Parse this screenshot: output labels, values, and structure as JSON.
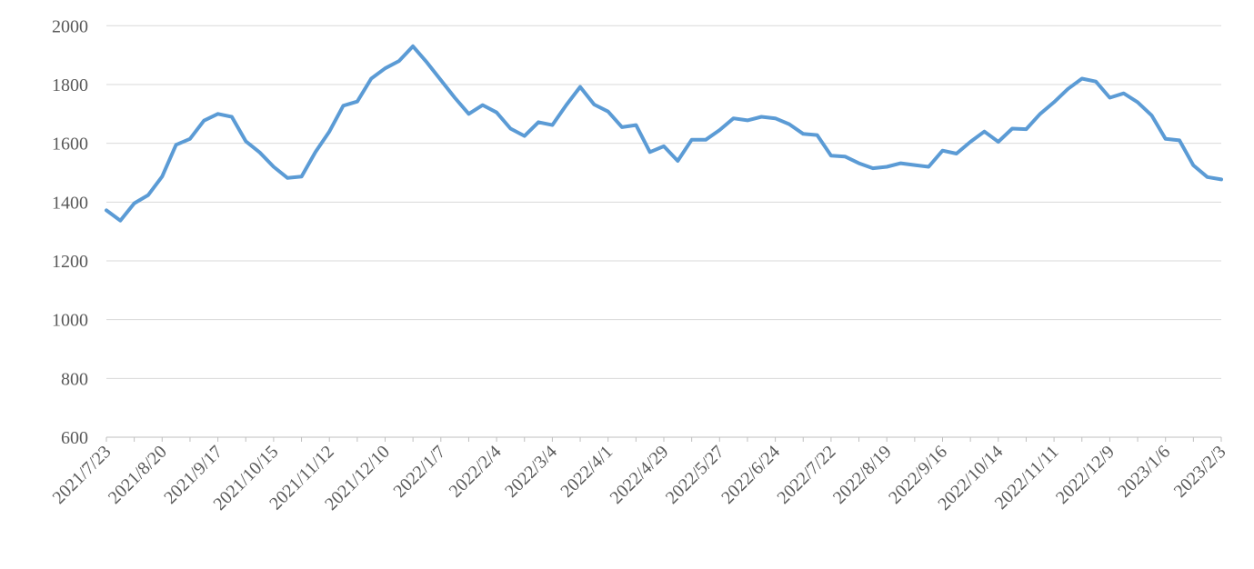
{
  "chart_data": {
    "type": "line",
    "title": "",
    "legend": "none",
    "grid": true,
    "ylim": [
      600,
      2000
    ],
    "ytick_step": 200,
    "y_tick_labels": [
      "600",
      "800",
      "1000",
      "1200",
      "1400",
      "1600",
      "1800",
      "2000"
    ],
    "x_label_every": 4,
    "tick_mark_every": 2,
    "x_tick_labels": [
      "2021/7/23",
      "2021/8/20",
      "2021/9/17",
      "2021/10/15",
      "2021/11/12",
      "2021/12/10",
      "2022/1/7",
      "2022/2/4",
      "2022/3/4",
      "2022/4/1",
      "2022/4/29",
      "2022/5/27",
      "2022/6/24",
      "2022/7/22",
      "2022/8/19",
      "2022/9/16",
      "2022/10/14",
      "2022/11/11",
      "2022/12/9",
      "2023/1/6",
      "2023/2/3"
    ],
    "x": [
      "2021/7/23",
      "2021/7/30",
      "2021/8/6",
      "2021/8/13",
      "2021/8/20",
      "2021/8/27",
      "2021/9/3",
      "2021/9/10",
      "2021/9/17",
      "2021/9/24",
      "2021/10/1",
      "2021/10/8",
      "2021/10/15",
      "2021/10/22",
      "2021/10/29",
      "2021/11/5",
      "2021/11/12",
      "2021/11/19",
      "2021/11/26",
      "2021/12/3",
      "2021/12/10",
      "2021/12/17",
      "2021/12/24",
      "2021/12/31",
      "2022/1/7",
      "2022/1/14",
      "2022/1/21",
      "2022/1/28",
      "2022/2/4",
      "2022/2/11",
      "2022/2/18",
      "2022/2/25",
      "2022/3/4",
      "2022/3/11",
      "2022/3/18",
      "2022/3/25",
      "2022/4/1",
      "2022/4/8",
      "2022/4/15",
      "2022/4/22",
      "2022/4/29",
      "2022/5/6",
      "2022/5/13",
      "2022/5/20",
      "2022/5/27",
      "2022/6/3",
      "2022/6/10",
      "2022/6/17",
      "2022/6/24",
      "2022/7/1",
      "2022/7/8",
      "2022/7/15",
      "2022/7/22",
      "2022/7/29",
      "2022/8/5",
      "2022/8/12",
      "2022/8/19",
      "2022/8/26",
      "2022/9/2",
      "2022/9/9",
      "2022/9/16",
      "2022/9/23",
      "2022/9/30",
      "2022/10/7",
      "2022/10/14",
      "2022/10/21",
      "2022/10/28",
      "2022/11/4",
      "2022/11/11",
      "2022/11/18",
      "2022/11/25",
      "2022/12/2",
      "2022/12/9",
      "2022/12/16",
      "2022/12/23",
      "2022/12/30",
      "2023/1/6",
      "2023/1/13",
      "2023/1/20",
      "2023/1/27",
      "2023/2/3"
    ],
    "values": [
      1372,
      1337,
      1396,
      1424,
      1487,
      1595,
      1615,
      1677,
      1700,
      1690,
      1607,
      1569,
      1520,
      1482,
      1487,
      1570,
      1640,
      1728,
      1742,
      1820,
      1855,
      1880,
      1930,
      1875,
      1815,
      1755,
      1700,
      1730,
      1705,
      1650,
      1625,
      1672,
      1662,
      1730,
      1792,
      1732,
      1708,
      1655,
      1662,
      1570,
      1590,
      1540,
      1612,
      1612,
      1645,
      1685,
      1678,
      1690,
      1685,
      1665,
      1632,
      1628,
      1558,
      1555,
      1532,
      1515,
      1520,
      1532,
      1526,
      1520,
      1575,
      1565,
      1605,
      1640,
      1605,
      1650,
      1648,
      1700,
      1740,
      1785,
      1820,
      1810,
      1755,
      1770,
      1740,
      1695,
      1615,
      1610,
      1525,
      1485,
      1477
    ],
    "line_color": "#5B9BD5",
    "gridline_color": "#D9D9D9",
    "axis_color": "#BFBFBF",
    "label_color": "#595959"
  }
}
